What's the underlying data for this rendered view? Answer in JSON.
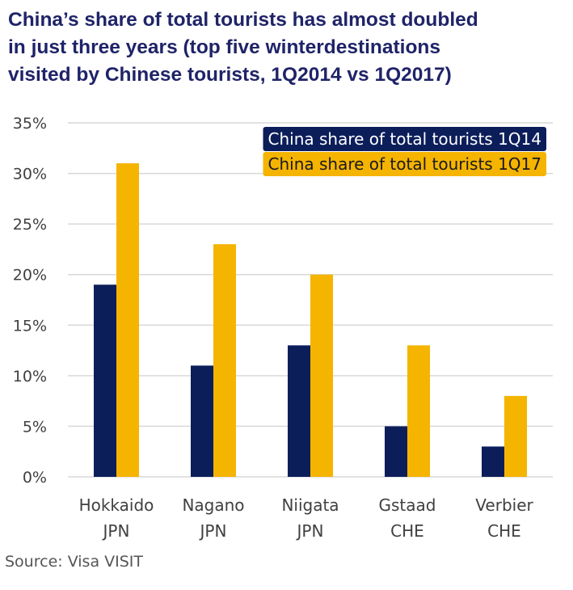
{
  "title_lines": [
    "China’s share of total tourists has almost doubled",
    "in just three years (top five winterdestinations",
    "visited by Chinese tourists, 1Q2014 vs 1Q2017)"
  ],
  "source": "Source:  Visa VISIT",
  "colors": {
    "title": "#1f2368",
    "series_1Q14": "#0c1e5a",
    "series_1Q17": "#f5b400",
    "grid": "#d9d9d9",
    "text": "#404040"
  },
  "chart_data": {
    "type": "bar",
    "title": "China’s share of total tourists has almost doubled in just three years (top five winterdestinations visited by Chinese tourists, 1Q2014 vs 1Q2017)",
    "categories": [
      [
        "Hokkaido",
        "JPN"
      ],
      [
        "Nagano",
        "JPN"
      ],
      [
        "Niigata",
        "JPN"
      ],
      [
        "Gstaad",
        "CHE"
      ],
      [
        "Verbier",
        "CHE"
      ]
    ],
    "series": [
      {
        "name": "China share of total tourists 1Q14",
        "values": [
          19,
          11,
          13,
          5,
          3
        ],
        "color": "#0c1e5a"
      },
      {
        "name": "China share of total tourists 1Q17",
        "values": [
          31,
          23,
          20,
          13,
          8
        ],
        "color": "#f5b400"
      }
    ],
    "ylim": [
      0,
      35
    ],
    "yticks": [
      0,
      5,
      10,
      15,
      20,
      25,
      30,
      35
    ],
    "ytick_labels": [
      "0%",
      "5%",
      "10%",
      "15%",
      "20%",
      "25%",
      "30%",
      "35%"
    ],
    "grid": true,
    "legend_position": "top-right",
    "xlabel": "",
    "ylabel": ""
  }
}
